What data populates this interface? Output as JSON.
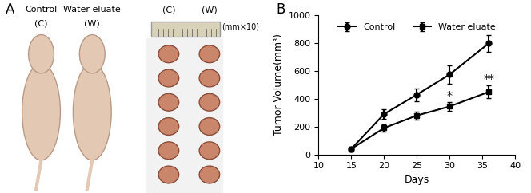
{
  "chart_data": {
    "type": "line",
    "panel": "B",
    "x_label": "Days",
    "y_label": "Tumor Volume(mm³)",
    "x": [
      15,
      20,
      25,
      30,
      36
    ],
    "series": [
      {
        "name": "Control",
        "color": "#000000",
        "marker": "circle",
        "line_style": "solid",
        "values": [
          40,
          290,
          430,
          575,
          800
        ],
        "errors": [
          10,
          35,
          45,
          65,
          60
        ]
      },
      {
        "name": "Water eluate",
        "color": "#000000",
        "marker": "square",
        "line_style": "solid",
        "values": [
          40,
          190,
          280,
          345,
          450
        ],
        "errors": [
          10,
          25,
          30,
          30,
          45
        ]
      }
    ],
    "annotations": [
      {
        "text": "*",
        "x": 30,
        "y": 385
      },
      {
        "text": "**",
        "x": 36,
        "y": 505
      }
    ],
    "xlim": [
      10,
      40
    ],
    "xticks": [
      10,
      15,
      20,
      25,
      30,
      35,
      40
    ],
    "ylim": [
      0,
      1000
    ],
    "yticks": [
      0,
      200,
      400,
      600,
      800,
      1000
    ],
    "grid": false,
    "legend": "upper center"
  },
  "photo_panel": {
    "label": "A",
    "mice": [
      {
        "name": "Control",
        "code": "(C)"
      },
      {
        "name": "Water eluate",
        "code": "(W)"
      }
    ],
    "tumor_columns": [
      "(C)",
      "(W)"
    ],
    "scale": "(mm×10)"
  }
}
